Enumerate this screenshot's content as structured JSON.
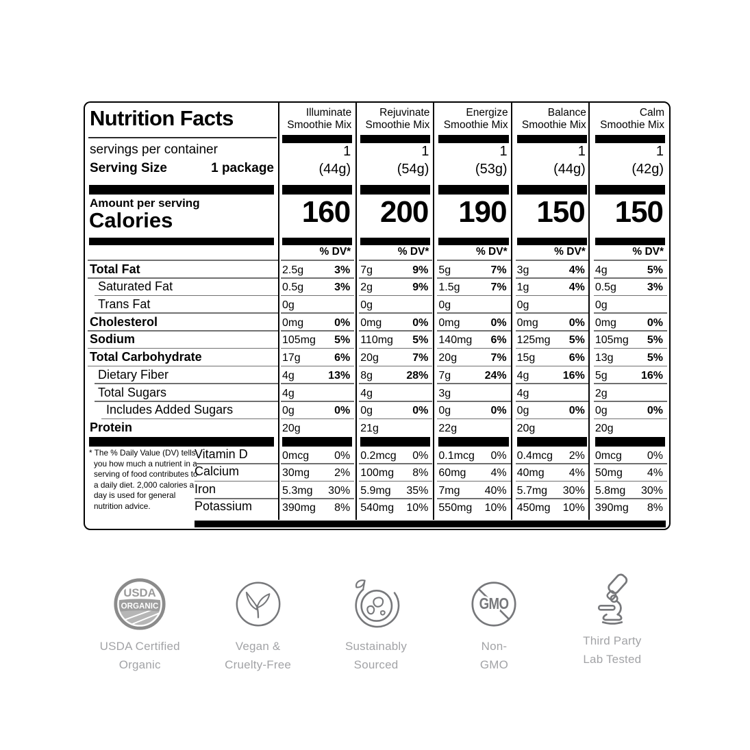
{
  "label": {
    "title": "Nutrition Facts",
    "servings_text": "servings per container",
    "serving_size_label": "Serving Size",
    "serving_size_value": "1 package",
    "amount_per_serving": "Amount per serving",
    "calories_label": "Calories",
    "dv_header": "% DV*",
    "footnote_marker": "*",
    "footnote": "The % Daily Value (DV) tells you how much a nutrient in a serving of food contributes to a daily diet. 2,000 calories a day is used for general nutrition advice.",
    "products": [
      {
        "name_line1": "Illuminate",
        "name_line2": "Smoothie Mix",
        "servings": "1",
        "serving_weight": "(44g)",
        "calories": "160"
      },
      {
        "name_line1": "Rejuvinate",
        "name_line2": "Smoothie Mix",
        "servings": "1",
        "serving_weight": "(54g)",
        "calories": "200"
      },
      {
        "name_line1": "Energize",
        "name_line2": "Smoothie Mix",
        "servings": "1",
        "serving_weight": "(53g)",
        "calories": "190"
      },
      {
        "name_line1": "Balance",
        "name_line2": "Smoothie Mix",
        "servings": "1",
        "serving_weight": "(44g)",
        "calories": "150"
      },
      {
        "name_line1": "Calm",
        "name_line2": "Smoothie Mix",
        "servings": "1",
        "serving_weight": "(42g)",
        "calories": "150"
      }
    ],
    "rows": [
      {
        "label": "Total Fat",
        "bold": true,
        "indent": 0,
        "values": [
          [
            "2.5g",
            "3%"
          ],
          [
            "7g",
            "9%"
          ],
          [
            "5g",
            "7%"
          ],
          [
            "3g",
            "4%"
          ],
          [
            "4g",
            "5%"
          ]
        ]
      },
      {
        "label": "Saturated Fat",
        "bold": false,
        "indent": 1,
        "values": [
          [
            "0.5g",
            "3%"
          ],
          [
            "2g",
            "9%"
          ],
          [
            "1.5g",
            "7%"
          ],
          [
            "1g",
            "4%"
          ],
          [
            "0.5g",
            "3%"
          ]
        ]
      },
      {
        "label": "Trans Fat",
        "bold": false,
        "indent": 1,
        "values": [
          [
            "0g",
            ""
          ],
          [
            "0g",
            ""
          ],
          [
            "0g",
            ""
          ],
          [
            "0g",
            ""
          ],
          [
            "0g",
            ""
          ]
        ]
      },
      {
        "label": "Cholesterol",
        "bold": true,
        "indent": 0,
        "values": [
          [
            "0mg",
            "0%"
          ],
          [
            "0mg",
            "0%"
          ],
          [
            "0mg",
            "0%"
          ],
          [
            "0mg",
            "0%"
          ],
          [
            "0mg",
            "0%"
          ]
        ]
      },
      {
        "label": "Sodium",
        "bold": true,
        "indent": 0,
        "values": [
          [
            "105mg",
            "5%"
          ],
          [
            "110mg",
            "5%"
          ],
          [
            "140mg",
            "6%"
          ],
          [
            "125mg",
            "5%"
          ],
          [
            "105mg",
            "5%"
          ]
        ]
      },
      {
        "label": "Total Carbohydrate",
        "bold": true,
        "indent": 0,
        "values": [
          [
            "17g",
            "6%"
          ],
          [
            "20g",
            "7%"
          ],
          [
            "20g",
            "7%"
          ],
          [
            "15g",
            "6%"
          ],
          [
            "13g",
            "5%"
          ]
        ]
      },
      {
        "label": "Dietary Fiber",
        "bold": false,
        "indent": 1,
        "values": [
          [
            "4g",
            "13%"
          ],
          [
            "8g",
            "28%"
          ],
          [
            "7g",
            "24%"
          ],
          [
            "4g",
            "16%"
          ],
          [
            "5g",
            "16%"
          ]
        ]
      },
      {
        "label": "Total Sugars",
        "bold": false,
        "indent": 1,
        "values": [
          [
            "4g",
            ""
          ],
          [
            "4g",
            ""
          ],
          [
            "3g",
            ""
          ],
          [
            "4g",
            ""
          ],
          [
            "2g",
            ""
          ]
        ]
      },
      {
        "label": "Includes Added Sugars",
        "bold": false,
        "indent": 2,
        "values": [
          [
            "0g",
            "0%"
          ],
          [
            "0g",
            "0%"
          ],
          [
            "0g",
            "0%"
          ],
          [
            "0g",
            "0%"
          ],
          [
            "0g",
            "0%"
          ]
        ]
      },
      {
        "label": "Protein",
        "bold": true,
        "indent": 0,
        "values": [
          [
            "20g",
            ""
          ],
          [
            "21g",
            ""
          ],
          [
            "22g",
            ""
          ],
          [
            "20g",
            ""
          ],
          [
            "20g",
            ""
          ]
        ]
      }
    ],
    "vitamins": [
      {
        "label": "Vitamin D",
        "values": [
          [
            "0mcg",
            "0%"
          ],
          [
            "0.2mcg",
            "0%"
          ],
          [
            "0.1mcg",
            "0%"
          ],
          [
            "0.4mcg",
            "2%"
          ],
          [
            "0mcg",
            "0%"
          ]
        ]
      },
      {
        "label": "Calcium",
        "values": [
          [
            "30mg",
            "2%"
          ],
          [
            "100mg",
            "8%"
          ],
          [
            "60mg",
            "4%"
          ],
          [
            "40mg",
            "4%"
          ],
          [
            "50mg",
            "4%"
          ]
        ]
      },
      {
        "label": "Iron",
        "values": [
          [
            "5.3mg",
            "30%"
          ],
          [
            "5.9mg",
            "35%"
          ],
          [
            "7mg",
            "40%"
          ],
          [
            "5.7mg",
            "30%"
          ],
          [
            "5.8mg",
            "30%"
          ]
        ]
      },
      {
        "label": "Potassium",
        "values": [
          [
            "390mg",
            "8%"
          ],
          [
            "540mg",
            "10%"
          ],
          [
            "550mg",
            "10%"
          ],
          [
            "450mg",
            "10%"
          ],
          [
            "390mg",
            "8%"
          ]
        ]
      }
    ]
  },
  "badges": [
    {
      "icon": "usda-organic-badge-icon",
      "texts": [
        "USDA",
        "ORGANIC"
      ],
      "lines": [
        "USDA Certified",
        "Organic"
      ]
    },
    {
      "icon": "vegan-sprout-icon",
      "lines": [
        "Vegan &",
        "Cruelty-Free"
      ]
    },
    {
      "icon": "sustainable-globe-leaf-icon",
      "lines": [
        "Sustainably",
        "Sourced"
      ]
    },
    {
      "icon": "non-gmo-icon",
      "text": "GMO",
      "lines": [
        "Non-",
        "GMO"
      ]
    },
    {
      "icon": "microscope-icon",
      "lines": [
        "Third Party",
        "Lab Tested"
      ]
    }
  ],
  "colors": {
    "text": "#000000",
    "divider_gray": "#6f6f6f",
    "icon_gray": "#77787b",
    "badge_label_gray": "#a2a3a6",
    "usda_gray": "#8b8b8b"
  }
}
